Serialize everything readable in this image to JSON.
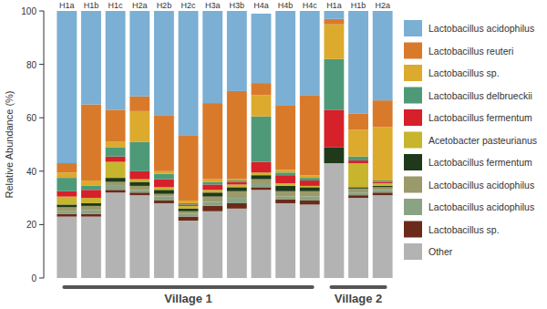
{
  "chart_data": {
    "type": "bar",
    "stacked": true,
    "y_label": "Relative Abundance (%)",
    "categories": [
      "H1a",
      "H1b",
      "H1c",
      "H2a",
      "H2b",
      "H2c",
      "H3a",
      "H3b",
      "H4a",
      "H4b",
      "H4c",
      "H1a",
      "H1b",
      "H2a"
    ],
    "groups": [
      {
        "name": "Village 1",
        "count": 11
      },
      {
        "name": "Village 2",
        "count": 3
      }
    ],
    "ylim": [
      0,
      100
    ],
    "yticks": [
      0,
      20,
      40,
      60,
      80,
      100
    ],
    "grid": false,
    "legend": "right",
    "series": [
      {
        "name": "Other",
        "color": "#b3b3b3",
        "values": [
          23,
          23,
          32,
          31,
          28,
          21.5,
          25,
          26,
          33,
          28,
          27.5,
          43,
          30,
          31
        ]
      },
      {
        "name": "Lactobacillus sp.",
        "color": "#6b2a1a",
        "values": [
          1,
          1,
          1,
          1,
          1,
          1.5,
          2,
          2,
          1,
          1.5,
          1.5,
          0,
          1,
          1
        ]
      },
      {
        "name": "Lactobacillus acidophilus",
        "color": "#8aa385",
        "values": [
          1,
          1.5,
          1.5,
          1,
          1.5,
          1,
          1.5,
          2,
          1.5,
          1,
          1.5,
          0,
          1,
          1
        ]
      },
      {
        "name": "Lactobacillus acidophilus",
        "color": "#9a9a6a",
        "values": [
          1.5,
          1.5,
          1.5,
          1.5,
          1,
          1,
          2,
          2.5,
          1.5,
          2,
          2,
          0,
          1.5,
          1
        ]
      },
      {
        "name": "Lactobacillus fermentum",
        "color": "#1f3a1a",
        "values": [
          1,
          1,
          1.5,
          1.5,
          1.5,
          1,
          1.5,
          1.5,
          1.5,
          2,
          1.5,
          6,
          0.5,
          0.5
        ]
      },
      {
        "name": "Acetobacter pasteurianus",
        "color": "#c8b52e",
        "values": [
          3,
          2,
          6,
          1,
          1,
          1,
          1,
          1,
          1,
          1,
          0.5,
          0,
          9,
          1
        ]
      },
      {
        "name": "Lactobacillus fermentum",
        "color": "#d6202a",
        "values": [
          2,
          3,
          2,
          3,
          3,
          0.5,
          2,
          1,
          4,
          3,
          2,
          14,
          1,
          0.5
        ]
      },
      {
        "name": "Lactobacillus delbrueckii",
        "color": "#4e9a78",
        "values": [
          5,
          1.5,
          3.5,
          11,
          2,
          0.5,
          1,
          0.5,
          17,
          1,
          1,
          19,
          1.5,
          0.5
        ]
      },
      {
        "name": "Lactobacillus sp.",
        "color": "#dcaa2d",
        "values": [
          2,
          2,
          2,
          11.5,
          1,
          1,
          1,
          0.5,
          8,
          1,
          1,
          13,
          10,
          20
        ]
      },
      {
        "name": "Lactobacillus reuteri",
        "color": "#d97a2b",
        "values": [
          3.5,
          28.5,
          12,
          5.5,
          21,
          24.5,
          28.5,
          33,
          4.5,
          24,
          30,
          2,
          6,
          10
        ]
      },
      {
        "name": "Lactobacillus acidophilus",
        "color": "#7bafd4",
        "values": [
          57,
          35,
          37,
          32,
          39,
          46.5,
          34.5,
          30,
          26,
          35.5,
          31.5,
          3,
          38.5,
          33.5
        ]
      }
    ]
  }
}
